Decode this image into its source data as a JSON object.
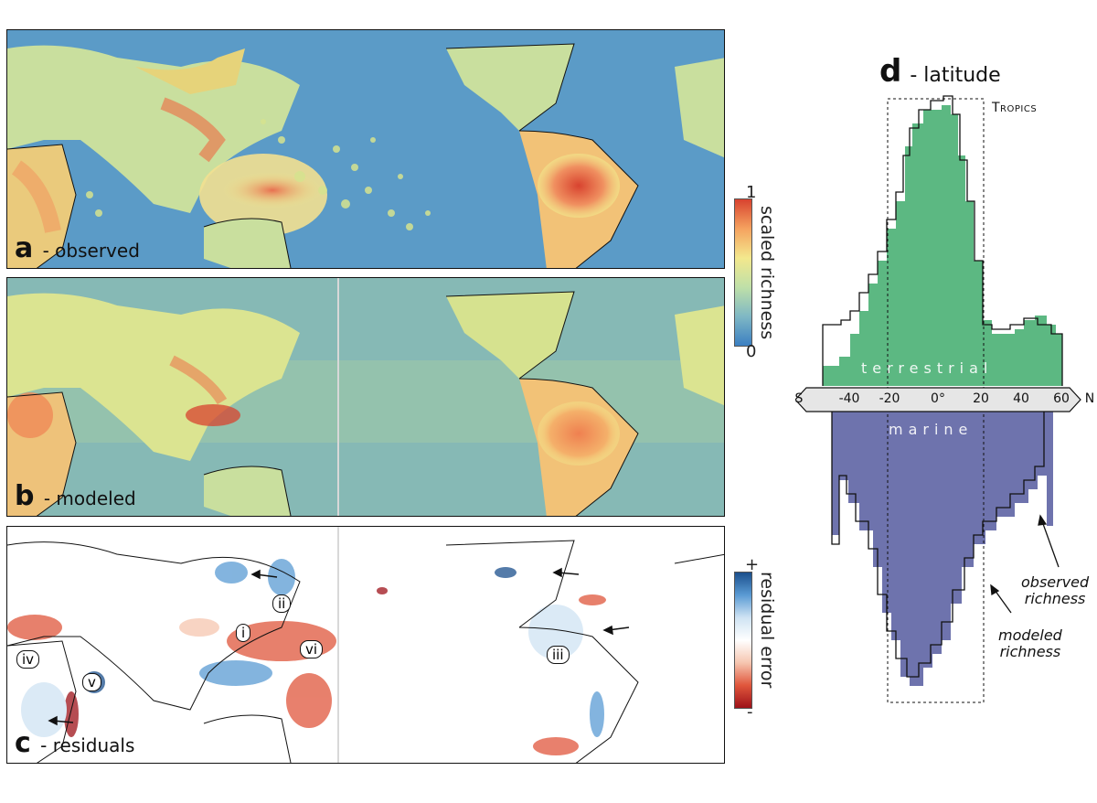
{
  "panels": {
    "a": {
      "letter": "a",
      "caption": " - observed"
    },
    "b": {
      "letter": "b",
      "caption": " - modeled"
    },
    "c": {
      "letter": "c",
      "caption": " - residuals"
    },
    "d": {
      "letter": "d",
      "caption": " - latitude"
    }
  },
  "colorbars": {
    "richness": {
      "label": "scaled richness",
      "max": "1",
      "min": "0",
      "colors": [
        "#3b7fc2",
        "#7fb8c4",
        "#bfe0a8",
        "#f3e88d",
        "#f5a25f",
        "#d8432f"
      ]
    },
    "residual": {
      "label": "residual error",
      "max": "+",
      "min": "-",
      "colors": [
        "#1b4f8c",
        "#5a9bd4",
        "#cfe3f3",
        "#ffffff",
        "#f6c6b0",
        "#e0563c",
        "#9e1219"
      ]
    }
  },
  "callouts": [
    "i",
    "ii",
    "iii",
    "iv",
    "v",
    "vi"
  ],
  "latitude": {
    "tropics_label": "Tropics",
    "south": "S",
    "north": "N",
    "ticks": [
      "-40",
      "-20",
      "0°",
      "20",
      "40",
      "60"
    ],
    "terrestrial_label": "terrestrial",
    "marine_label": "marine",
    "observed_label_1": "observed",
    "observed_label_2": "richness",
    "modeled_label_1": "modeled",
    "modeled_label_2": "richness",
    "colors": {
      "terrestrial": "#5cb882",
      "marine": "#6e73ad"
    }
  }
}
